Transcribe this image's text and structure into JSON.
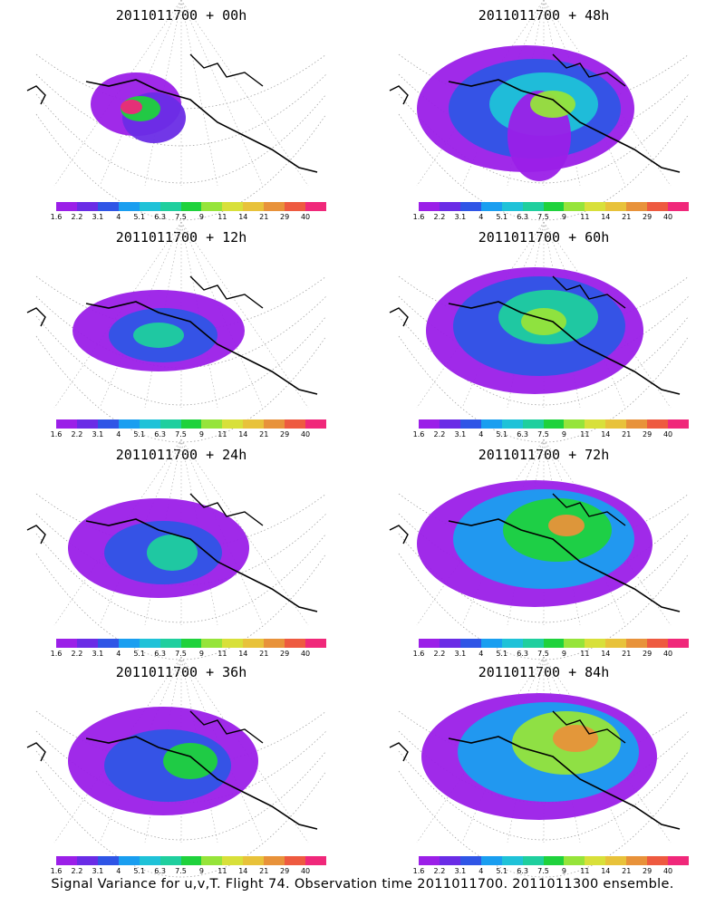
{
  "chart_data": {
    "type": "heatmap",
    "panels": [
      {
        "title": "2011011700 + 00h"
      },
      {
        "title": "2011011700 + 48h"
      },
      {
        "title": "2011011700 + 12h"
      },
      {
        "title": "2011011700 + 60h"
      },
      {
        "title": "2011011700 + 24h"
      },
      {
        "title": "2011011700 + 72h"
      },
      {
        "title": "2011011700 + 36h"
      },
      {
        "title": "2011011700 + 84h"
      }
    ],
    "colorbar": {
      "levels": [
        "1.6",
        "2.2",
        "3.1",
        "4",
        "5.1",
        "6.3",
        "7.5",
        "9",
        "11",
        "14",
        "21",
        "29",
        "40"
      ],
      "colors": [
        "#9b1fe8",
        "#6a2ce6",
        "#2f55e6",
        "#1a9ef0",
        "#1fc2d8",
        "#1fcf9e",
        "#1fd23c",
        "#96e43a",
        "#d8e03a",
        "#e8c23a",
        "#e8923a",
        "#ee5a40",
        "#f0287a"
      ]
    },
    "grid": true,
    "projection": "polar-stereographic"
  },
  "caption": "Signal Variance for u,v,T. Flight 74. Observation time 2011011700. 2011011300 ensemble."
}
